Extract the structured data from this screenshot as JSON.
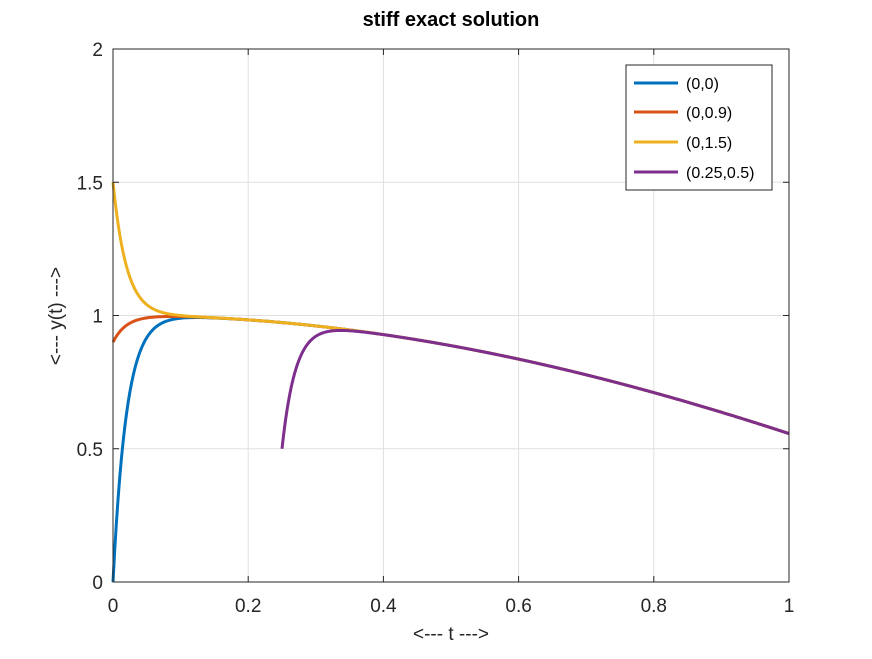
{
  "chart_data": {
    "type": "line",
    "title": "stiff exact solution",
    "xlabel": "<---  t  --->",
    "ylabel": "<---  y(t)  --->",
    "xlim": [
      0,
      1
    ],
    "ylim": [
      0,
      2
    ],
    "xticks": [
      0,
      0.2,
      0.4,
      0.6,
      0.8,
      1
    ],
    "yticks": [
      0,
      0.5,
      1,
      1.5,
      2
    ],
    "xtick_labels": [
      "0",
      "0.2",
      "0.4",
      "0.6",
      "0.8",
      "1"
    ],
    "ytick_labels": [
      "0",
      "0.5",
      "1",
      "1.5",
      "2"
    ],
    "grid": true,
    "legend_position": "top-right",
    "series": [
      {
        "name": "(0,0)",
        "color": "#0072bd",
        "t0": 0,
        "y0": 0
      },
      {
        "name": "(0,0.9)",
        "color": "#d95319",
        "t0": 0,
        "y0": 0.9
      },
      {
        "name": "(0,1.5)",
        "color": "#edb120",
        "t0": 0,
        "y0": 1.5
      },
      {
        "name": "(0.25,0.5)",
        "color": "#7e2f8e",
        "t0": 0.25,
        "y0": 0.5
      }
    ]
  }
}
